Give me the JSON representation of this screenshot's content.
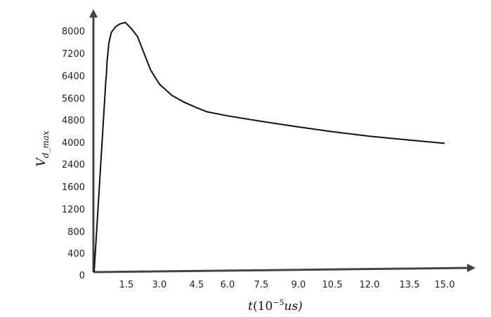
{
  "chart_data": {
    "type": "line",
    "title": "",
    "xlabel_main": "t",
    "xlabel_unit": "(10",
    "xlabel_exp": "−5",
    "xlabel_tail": "us)",
    "ylabel_main": "V",
    "ylabel_sub": "d_max",
    "x_ticks": [
      "1.5",
      "3.0",
      "4.5",
      "6.0",
      "7.5",
      "9.0",
      "10.5",
      "12.0",
      "13.5",
      "15.0"
    ],
    "y_ticks": [
      "0",
      "400",
      "800",
      "1200",
      "1600",
      "2400",
      "4000",
      "4800",
      "5600",
      "6400",
      "7200",
      "8000"
    ],
    "series": [
      {
        "x": [
          0.0,
          0.55,
          0.56,
          0.6,
          0.68,
          0.8,
          1.0,
          1.2,
          1.45,
          1.7,
          2.0,
          2.3,
          2.6,
          3.0,
          3.5,
          4.0,
          4.5,
          5.0,
          6.0,
          7.5,
          9.0,
          10.5,
          12.0,
          13.5,
          15.0
        ],
        "y": [
          0,
          6320,
          6320,
          6900,
          7550,
          7950,
          8150,
          8250,
          8300,
          8100,
          7800,
          7200,
          6600,
          6100,
          5700,
          5450,
          5250,
          5100,
          4950,
          4750,
          4550,
          4380,
          4220,
          4080,
          3930
        ]
      }
    ],
    "color": "#111111"
  }
}
